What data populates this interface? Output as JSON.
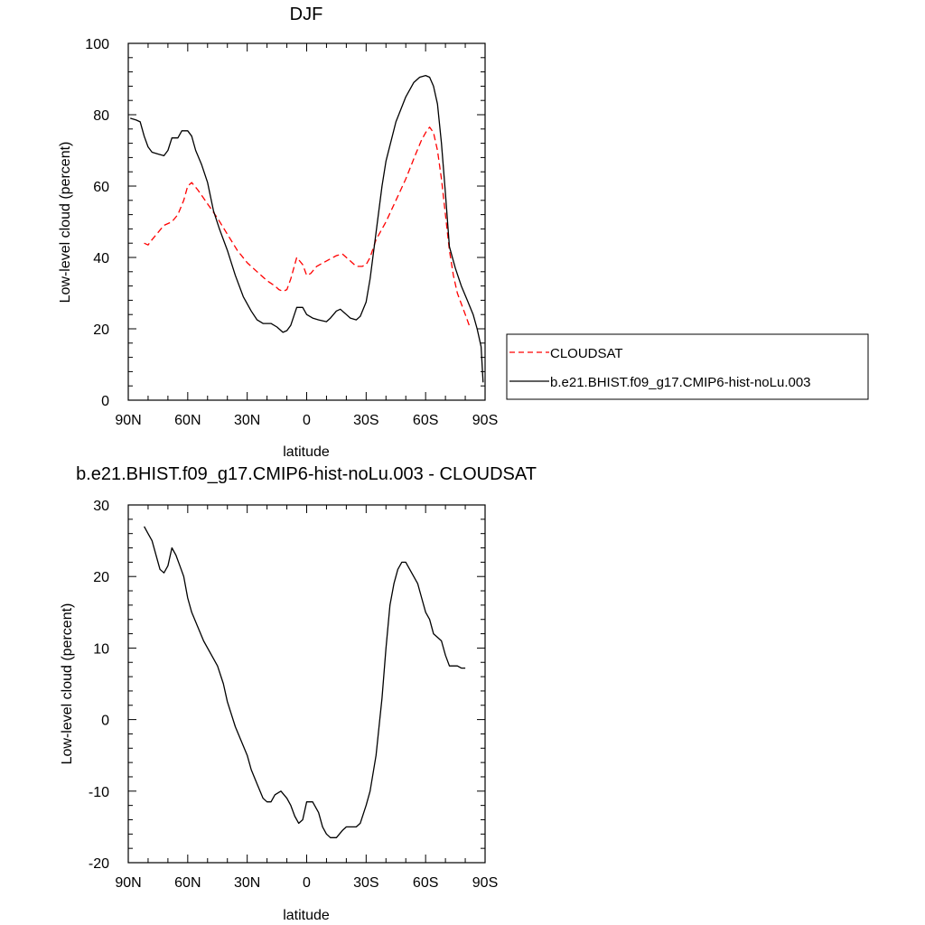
{
  "chart_data": [
    {
      "type": "line",
      "title": "DJF",
      "xlabel": "latitude",
      "ylabel": "Low-level cloud (percent)",
      "xlim": [
        -90,
        90
      ],
      "ylim": [
        0,
        100
      ],
      "x_ticks": [
        -90,
        -60,
        -30,
        0,
        30,
        60,
        90
      ],
      "x_tick_labels": [
        "90N",
        "60N",
        "30N",
        "0",
        "30S",
        "60S",
        "90S"
      ],
      "y_ticks": [
        0,
        20,
        40,
        60,
        80,
        100
      ],
      "y_tick_labels": [
        "0",
        "20",
        "40",
        "60",
        "80",
        "100"
      ],
      "legend_position": "right",
      "series": [
        {
          "name": "CLOUDSAT",
          "style": "dashed",
          "color": "#ff0000",
          "x": [
            -82,
            -80,
            -78,
            -75,
            -72,
            -68,
            -65,
            -62,
            -60,
            -58,
            -55,
            -50,
            -45,
            -40,
            -35,
            -30,
            -25,
            -20,
            -16,
            -14,
            -12,
            -10,
            -8,
            -5,
            -2,
            0,
            2,
            5,
            10,
            15,
            18,
            20,
            22,
            25,
            28,
            30,
            32,
            35,
            40,
            45,
            50,
            55,
            58,
            60,
            62,
            64,
            66,
            68,
            70,
            72,
            74,
            76,
            78,
            80,
            82
          ],
          "y": [
            44,
            43.5,
            45,
            47,
            49,
            50,
            52,
            56,
            60,
            61,
            59,
            55,
            51,
            46.5,
            42,
            38.5,
            36,
            33.5,
            32,
            31,
            30.5,
            31,
            34,
            40,
            38,
            35,
            35.5,
            37.5,
            39,
            40.5,
            41,
            40,
            39,
            37.5,
            37.5,
            38,
            40,
            45,
            50,
            56,
            62,
            69,
            73,
            75,
            76.5,
            75,
            70,
            62,
            52,
            42,
            35,
            30,
            27,
            24,
            21
          ]
        },
        {
          "name": "b.e21.BHIST.f09_g17.CMIP6-hist-noLu.003",
          "style": "solid",
          "color": "#000000",
          "x": [
            -89,
            -86,
            -84,
            -82,
            -80,
            -78,
            -75,
            -72,
            -70,
            -68,
            -65,
            -63,
            -60,
            -58,
            -56,
            -53,
            -50,
            -47,
            -44,
            -40,
            -36,
            -32,
            -28,
            -25,
            -22,
            -18,
            -15,
            -12,
            -10,
            -8,
            -5,
            -2,
            0,
            3,
            6,
            10,
            12,
            15,
            17,
            20,
            22,
            25,
            27,
            30,
            32,
            35,
            38,
            40,
            45,
            50,
            54,
            57,
            60,
            62,
            64,
            66,
            68,
            70,
            72,
            75,
            78,
            81,
            84,
            86,
            88,
            89
          ],
          "y": [
            79,
            78.5,
            78,
            74,
            71,
            69.5,
            69,
            68.5,
            70,
            73.5,
            73.5,
            75.5,
            75.5,
            74,
            70,
            66,
            61,
            53,
            48,
            42,
            35,
            29,
            25,
            22.5,
            21.5,
            21.5,
            20.5,
            19,
            19.5,
            21,
            26,
            26,
            24,
            23,
            22.5,
            22,
            23,
            25,
            25.5,
            24,
            23,
            22.5,
            23.5,
            27.5,
            34,
            47,
            60,
            67,
            78,
            85,
            89,
            90.5,
            91,
            90.5,
            88,
            83,
            72,
            58,
            43,
            37,
            32,
            28,
            24,
            20,
            15,
            5
          ]
        }
      ]
    },
    {
      "type": "line",
      "title": "b.e21.BHIST.f09_g17.CMIP6-hist-noLu.003 - CLOUDSAT",
      "xlabel": "latitude",
      "ylabel": "Low-level cloud (percent)",
      "xlim": [
        -90,
        90
      ],
      "ylim": [
        -20,
        30
      ],
      "x_ticks": [
        -90,
        -60,
        -30,
        0,
        30,
        60,
        90
      ],
      "x_tick_labels": [
        "90N",
        "60N",
        "30N",
        "0",
        "30S",
        "60S",
        "90S"
      ],
      "y_ticks": [
        -20,
        -10,
        0,
        10,
        20,
        30
      ],
      "y_tick_labels": [
        "-20",
        "-10",
        "0",
        "10",
        "20",
        "30"
      ],
      "series": [
        {
          "style": "solid",
          "color": "#000000",
          "x": [
            -82,
            -80,
            -78,
            -76,
            -74,
            -72,
            -70,
            -68,
            -66,
            -64,
            -62,
            -60,
            -58,
            -55,
            -52,
            -48,
            -45,
            -42,
            -40,
            -36,
            -33,
            -30,
            -28,
            -25,
            -22,
            -20,
            -18,
            -16,
            -13,
            -10,
            -8,
            -6,
            -4,
            -2,
            0,
            3,
            6,
            8,
            10,
            12,
            15,
            18,
            20,
            22,
            25,
            27,
            30,
            32,
            35,
            38,
            40,
            42,
            44,
            46,
            48,
            50,
            52,
            54,
            56,
            58,
            60,
            62,
            64,
            66,
            68,
            70,
            72,
            74,
            76,
            78,
            80
          ],
          "y": [
            27,
            26,
            25,
            23,
            21,
            20.5,
            21.5,
            24,
            23,
            21.5,
            20,
            17,
            15,
            13,
            11,
            9,
            7.5,
            5,
            2.5,
            -1,
            -3,
            -5,
            -7,
            -9,
            -11,
            -11.5,
            -11.5,
            -10.5,
            -10,
            -11,
            -12,
            -13.5,
            -14.5,
            -14,
            -11.5,
            -11.5,
            -13,
            -15,
            -16,
            -16.5,
            -16.5,
            -15.5,
            -15,
            -15,
            -15,
            -14.5,
            -12,
            -10,
            -5,
            3,
            10,
            16,
            19,
            21,
            22,
            22,
            21,
            20,
            19,
            17,
            15,
            14,
            12,
            11.5,
            11,
            9,
            7.5,
            7.5,
            7.5,
            7.2,
            7.2
          ]
        }
      ]
    }
  ]
}
